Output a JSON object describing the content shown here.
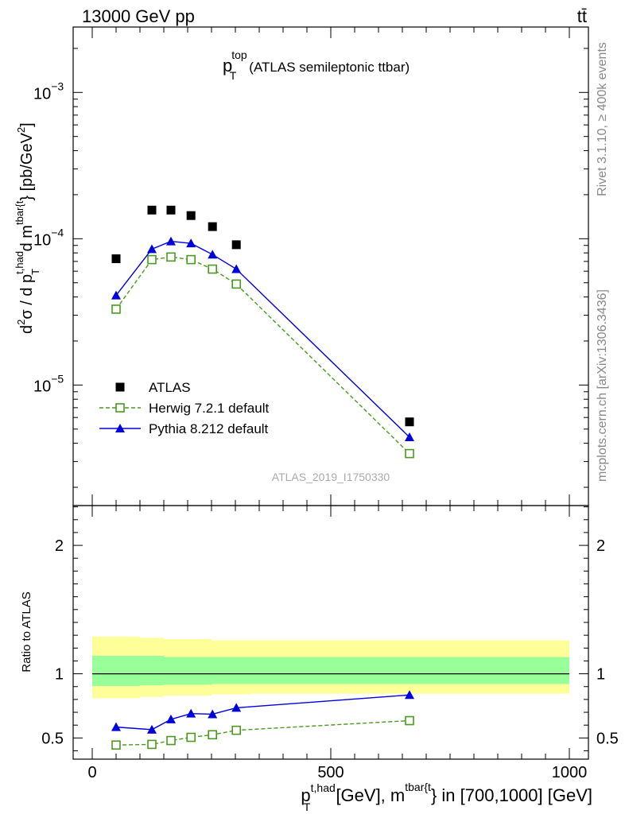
{
  "header": {
    "left": "13000 GeV pp",
    "right": "tt̄",
    "side_top": "Rivet 3.1.10, ≥ 400k events",
    "side_bottom": "mcplots.cern.ch [arXiv:1306.3436]",
    "analysis_id": "ATLAS_2019_I1750330"
  },
  "chart_data": [
    {
      "type": "scatter",
      "role": "main",
      "title_main": "p",
      "title_sup": "top",
      "title_sub": "T",
      "title_suffix": "(ATLAS semileptonic ttbar)",
      "yscale": "log",
      "ylim": [
        1.5e-06,
        0.0028
      ],
      "xlim": [
        -40,
        1040
      ],
      "ytick_labels": [
        {
          "value": 0.001,
          "base": "10",
          "exp": "−3"
        },
        {
          "value": 0.0001,
          "base": "10",
          "exp": "−4"
        },
        {
          "value": 1e-05,
          "base": "10",
          "exp": "−5"
        }
      ],
      "ylabel": {
        "d1": "d",
        "sup2": "2",
        "sigma": "σ / d p",
        "supHad": "t,had",
        "subT": "T",
        "d2": " d m",
        "supTbar": "tbar{t",
        "rest": "} [pb/GeV",
        "sup2b": "2",
        "end": "]"
      },
      "legend_position": "bottom-left",
      "series": [
        {
          "name": "ATLAS",
          "color": "#000000",
          "marker": "square-filled",
          "x": [
            50,
            125,
            165,
            207,
            252,
            302,
            665
          ],
          "y": [
            7.3e-05,
            0.000157,
            0.000157,
            0.000144,
            0.000121,
            9.1e-05,
            5.6e-06
          ]
        },
        {
          "name": "Herwig 7.2.1 default",
          "color": "#4a9a1e",
          "marker": "square-open",
          "line": "dashed",
          "x": [
            50,
            125,
            165,
            207,
            252,
            302,
            665
          ],
          "y": [
            3.3e-05,
            7.2e-05,
            7.5e-05,
            7.2e-05,
            6.2e-05,
            4.9e-05,
            3.4e-06
          ]
        },
        {
          "name": "Pythia 8.212 default",
          "color": "#0000dd",
          "marker": "triangle-filled",
          "line": "solid",
          "x": [
            50,
            125,
            165,
            207,
            252,
            302,
            665
          ],
          "y": [
            4.1e-05,
            8.5e-05,
            9.6e-05,
            9.3e-05,
            7.8e-05,
            6.2e-05,
            4.4e-06
          ]
        }
      ]
    },
    {
      "type": "scatter",
      "role": "ratio",
      "ylabel": "Ratio to ATLAS",
      "ylim": [
        0.335,
        2.31
      ],
      "xlim": [
        -40,
        1040
      ],
      "yticks": [
        0.5,
        1,
        2
      ],
      "ytick_labels": [
        "0.5",
        "1",
        "2"
      ],
      "xticks": [
        0,
        500,
        1000
      ],
      "xtick_labels": [
        "0",
        "500",
        "1000"
      ],
      "xlabel": {
        "p": "p",
        "supHad": "t,had",
        "subT": "T",
        "mid": " [GeV], m",
        "supTbar": "tbar{t",
        "rest": "} in [700,1000] [GeV]"
      },
      "bands": {
        "edges": [
          0,
          100,
          150,
          200,
          250,
          300,
          330,
          1000
        ],
        "yellow_lo": [
          0.81,
          0.82,
          0.83,
          0.83,
          0.84,
          0.84,
          0.845
        ],
        "yellow_hi": [
          1.29,
          1.28,
          1.27,
          1.27,
          1.26,
          1.26,
          1.26
        ],
        "green_lo": [
          0.905,
          0.91,
          0.915,
          0.915,
          0.92,
          0.92,
          0.92
        ],
        "green_hi": [
          1.14,
          1.14,
          1.13,
          1.13,
          1.13,
          1.13,
          1.13
        ],
        "yellow_color": "#ffff99",
        "green_color": "#99ff99"
      },
      "series": [
        {
          "name": "Herwig 7.2.1 default",
          "color": "#4a9a1e",
          "marker": "square-open",
          "line": "dashed",
          "x": [
            50,
            125,
            165,
            207,
            252,
            302,
            665
          ],
          "y": [
            0.445,
            0.45,
            0.48,
            0.505,
            0.525,
            0.56,
            0.635
          ],
          "err": [
            0,
            0,
            0,
            0,
            0,
            0,
            0
          ]
        },
        {
          "name": "Pythia 8.212 default",
          "color": "#0000dd",
          "marker": "triangle-filled",
          "line": "solid",
          "x": [
            50,
            125,
            165,
            207,
            252,
            302,
            665
          ],
          "y": [
            0.585,
            0.565,
            0.645,
            0.69,
            0.685,
            0.735,
            0.835
          ],
          "err": [
            0.022,
            0.022,
            0.025,
            0.025,
            0.025,
            0.025,
            0.022
          ]
        }
      ]
    }
  ]
}
